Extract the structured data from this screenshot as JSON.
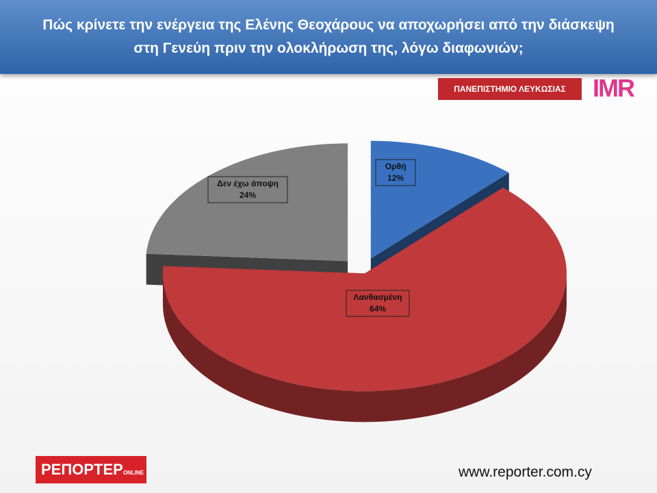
{
  "chart_data": {
    "type": "pie",
    "title": "Πώς κρίνετε την ενέργεια της Ελένης Θεοχάρους να αποχωρήσει από την διάσκεψη στη Γενεύη πριν την ολοκλήρωση της,  λόγω διαφωνιών;",
    "categories": [
      "Ορθή",
      "Λανθασμένη",
      "Δεν έχω άποψη"
    ],
    "values": [
      12,
      64,
      24
    ],
    "value_labels": [
      "12%",
      "64%",
      "24%"
    ],
    "colors": [
      "#3a72c0",
      "#c0393b",
      "#808080"
    ]
  },
  "branding": {
    "university": "ΠΑΝΕΠΙΣΤΗΜΙΟ ΛΕΥΚΩΣΙΑΣ",
    "imr": "IMR",
    "reporter": "ΡΕΠΟΡΤΕΡ",
    "online": "ONLINE",
    "url": "www.reporter.com.cy"
  }
}
